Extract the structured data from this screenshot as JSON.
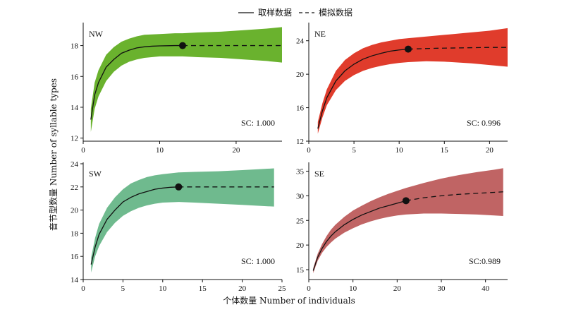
{
  "legend": {
    "observed": "取样数据",
    "extrapolated": "模拟数据"
  },
  "xlabel": "个体数量 Number of individuals",
  "ylabel": "音节型数量 Number of syllable types",
  "chart_data": [
    {
      "type": "line",
      "panel": "NW",
      "color": "#6ab22e",
      "coverage_label": "SC: 1.000",
      "xlim": [
        0,
        26
      ],
      "ylim": [
        11.8,
        19.4
      ],
      "xticks": [
        0,
        10,
        20
      ],
      "yticks": [
        12,
        14,
        16,
        18
      ],
      "ref_point": [
        13,
        18.0
      ],
      "observed": {
        "x": [
          1,
          1.5,
          2,
          3,
          4,
          5,
          6,
          7,
          8,
          9,
          10,
          11,
          12,
          13
        ],
        "y": [
          13.2,
          14.8,
          15.6,
          16.6,
          17.1,
          17.5,
          17.7,
          17.85,
          17.92,
          17.96,
          17.98,
          17.99,
          18.0,
          18.0
        ]
      },
      "extrapolated": {
        "x": [
          13,
          26
        ],
        "y": [
          18.0,
          18.0
        ]
      },
      "ci": {
        "x": [
          1,
          1.5,
          2,
          3,
          4,
          5,
          6,
          7,
          8,
          10,
          12,
          13,
          15,
          18,
          21,
          24,
          26
        ],
        "lower": [
          12.4,
          13.9,
          14.7,
          15.7,
          16.3,
          16.7,
          16.95,
          17.1,
          17.2,
          17.3,
          17.3,
          17.3,
          17.25,
          17.2,
          17.1,
          17.0,
          16.9
        ],
        "upper": [
          13.9,
          15.6,
          16.4,
          17.4,
          17.9,
          18.25,
          18.45,
          18.6,
          18.7,
          18.75,
          18.8,
          18.8,
          18.85,
          18.9,
          19.0,
          19.1,
          19.2
        ]
      }
    },
    {
      "type": "line",
      "panel": "NE",
      "color": "#e03c2c",
      "coverage_label": "SC: 0.996",
      "xlim": [
        0,
        22
      ],
      "ylim": [
        12,
        26
      ],
      "xticks": [
        0,
        5,
        10,
        15,
        20
      ],
      "yticks": [
        12,
        16,
        20,
        24
      ],
      "ref_point": [
        11,
        23.0
      ],
      "observed": {
        "x": [
          1,
          1.5,
          2,
          3,
          4,
          5,
          6,
          7,
          8,
          9,
          10,
          11
        ],
        "y": [
          13.5,
          15.6,
          17.2,
          19.2,
          20.4,
          21.2,
          21.8,
          22.2,
          22.5,
          22.75,
          22.9,
          23.0
        ]
      },
      "extrapolated": {
        "x": [
          11,
          14,
          17,
          20,
          22
        ],
        "y": [
          23.0,
          23.1,
          23.15,
          23.2,
          23.2
        ]
      },
      "ci": {
        "x": [
          1,
          1.5,
          2,
          3,
          4,
          5,
          6,
          7,
          8,
          9,
          10,
          11,
          13,
          15,
          18,
          20,
          22
        ],
        "lower": [
          12.9,
          14.8,
          16.3,
          18.1,
          19.2,
          19.9,
          20.4,
          20.75,
          21.0,
          21.2,
          21.35,
          21.45,
          21.55,
          21.5,
          21.3,
          21.1,
          20.9
        ],
        "upper": [
          14.3,
          16.5,
          18.2,
          20.4,
          21.7,
          22.5,
          23.1,
          23.5,
          23.8,
          24.0,
          24.2,
          24.3,
          24.5,
          24.7,
          25.0,
          25.2,
          25.5
        ]
      }
    },
    {
      "type": "line",
      "panel": "SW",
      "color": "#6fba8e",
      "coverage_label": "SC: 1.000",
      "xlim": [
        0,
        25
      ],
      "ylim": [
        14,
        24
      ],
      "xticks": [
        0,
        5,
        10,
        15,
        20,
        25
      ],
      "yticks": [
        14,
        16,
        18,
        20,
        22,
        24
      ],
      "ref_point": [
        12,
        22.0
      ],
      "observed": {
        "x": [
          1,
          1.5,
          2,
          3,
          4,
          5,
          6,
          7,
          8,
          9,
          10,
          11,
          12
        ],
        "y": [
          15.3,
          16.8,
          17.9,
          19.2,
          20.0,
          20.7,
          21.1,
          21.4,
          21.6,
          21.8,
          21.9,
          21.97,
          22.0
        ]
      },
      "extrapolated": {
        "x": [
          12,
          24
        ],
        "y": [
          22.0,
          22.0
        ]
      },
      "ci": {
        "x": [
          1,
          1.5,
          2,
          3,
          4,
          5,
          6,
          7,
          8,
          9,
          10,
          12,
          14,
          17,
          20,
          24
        ],
        "lower": [
          14.6,
          16.0,
          16.9,
          18.1,
          18.9,
          19.5,
          19.9,
          20.2,
          20.4,
          20.55,
          20.65,
          20.7,
          20.65,
          20.55,
          20.45,
          20.3
        ],
        "upper": [
          15.9,
          17.6,
          18.8,
          20.2,
          21.1,
          21.8,
          22.3,
          22.6,
          22.85,
          23.0,
          23.1,
          23.25,
          23.3,
          23.35,
          23.45,
          23.6
        ]
      }
    },
    {
      "type": "line",
      "panel": "SE",
      "color": "#c06464",
      "coverage_label": "SC:0.989",
      "xlim": [
        0,
        45
      ],
      "ylim": [
        13,
        36.5
      ],
      "xticks": [
        0,
        10,
        20,
        30,
        40
      ],
      "yticks": [
        15,
        20,
        25,
        30,
        35
      ],
      "ref_point": [
        22,
        29.0
      ],
      "observed": {
        "x": [
          1,
          2,
          3,
          4,
          5,
          6,
          8,
          10,
          12,
          14,
          16,
          18,
          20,
          22
        ],
        "y": [
          14.8,
          17.5,
          19.3,
          20.7,
          21.8,
          22.7,
          24.1,
          25.2,
          26.1,
          26.8,
          27.5,
          28.0,
          28.5,
          29.0
        ]
      },
      "extrapolated": {
        "x": [
          22,
          26,
          30,
          34,
          38,
          42,
          44
        ],
        "y": [
          29.0,
          29.6,
          30.0,
          30.3,
          30.5,
          30.7,
          30.8
        ]
      },
      "ci": {
        "x": [
          1,
          2,
          3,
          4,
          5,
          6,
          8,
          10,
          12,
          14,
          16,
          18,
          20,
          22,
          26,
          30,
          34,
          38,
          42,
          44
        ],
        "lower": [
          14.3,
          16.8,
          18.4,
          19.6,
          20.5,
          21.3,
          22.5,
          23.4,
          24.2,
          24.8,
          25.3,
          25.7,
          26.0,
          26.2,
          26.4,
          26.4,
          26.3,
          26.2,
          26.0,
          25.9
        ],
        "upper": [
          15.3,
          18.2,
          20.2,
          21.8,
          23.1,
          24.1,
          25.7,
          27.0,
          28.0,
          28.9,
          29.7,
          30.4,
          31.0,
          31.6,
          32.6,
          33.5,
          34.2,
          34.8,
          35.3,
          35.6
        ]
      }
    }
  ]
}
